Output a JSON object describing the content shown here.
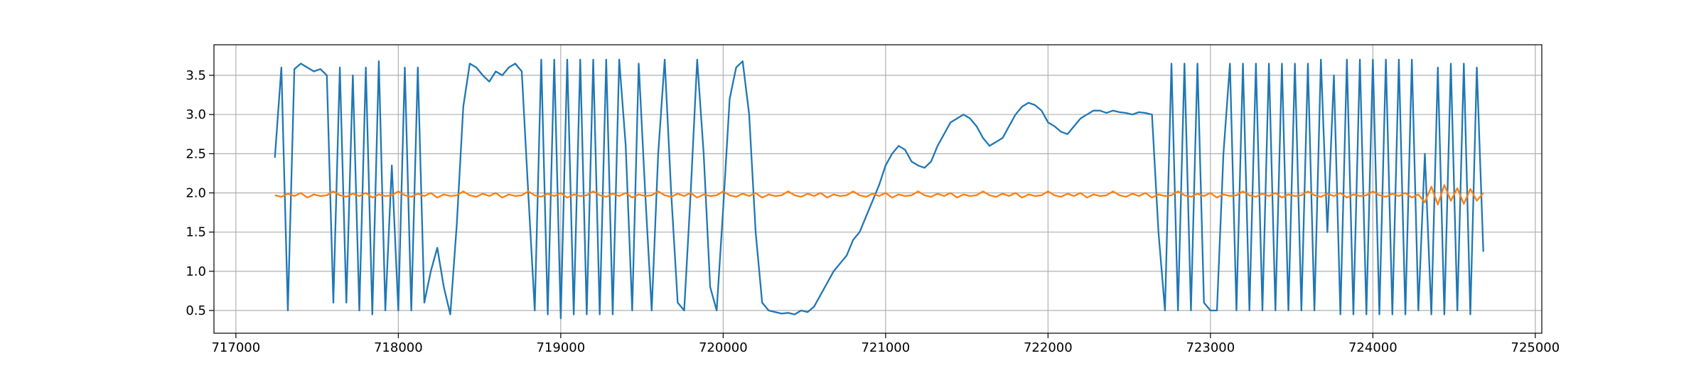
{
  "chart_data": {
    "type": "line",
    "x": [
      717240,
      717280,
      717320,
      717360,
      717400,
      717440,
      717480,
      717520,
      717560,
      717600,
      717640,
      717680,
      717720,
      717760,
      717800,
      717840,
      717880,
      717920,
      717960,
      718000,
      718040,
      718080,
      718120,
      718160,
      718200,
      718240,
      718280,
      718320,
      718360,
      718400,
      718440,
      718480,
      718520,
      718560,
      718600,
      718640,
      718680,
      718720,
      718760,
      718800,
      718840,
      718880,
      718920,
      718960,
      719000,
      719040,
      719080,
      719120,
      719160,
      719200,
      719240,
      719280,
      719320,
      719360,
      719400,
      719440,
      719480,
      719520,
      719560,
      719600,
      719640,
      719680,
      719720,
      719760,
      719800,
      719840,
      719880,
      719920,
      719960,
      720000,
      720040,
      720080,
      720120,
      720160,
      720200,
      720240,
      720280,
      720320,
      720360,
      720400,
      720440,
      720480,
      720520,
      720560,
      720600,
      720640,
      720680,
      720720,
      720760,
      720800,
      720840,
      720880,
      720920,
      720960,
      721000,
      721040,
      721080,
      721120,
      721160,
      721200,
      721240,
      721280,
      721320,
      721360,
      721400,
      721440,
      721480,
      721520,
      721560,
      721600,
      721640,
      721680,
      721720,
      721760,
      721800,
      721840,
      721880,
      721920,
      721960,
      722000,
      722040,
      722080,
      722120,
      722160,
      722200,
      722240,
      722280,
      722320,
      722360,
      722400,
      722440,
      722480,
      722520,
      722560,
      722600,
      722640,
      722680,
      722720,
      722760,
      722800,
      722840,
      722880,
      722920,
      722960,
      723000,
      723040,
      723080,
      723120,
      723160,
      723200,
      723240,
      723280,
      723320,
      723360,
      723400,
      723440,
      723480,
      723520,
      723560,
      723600,
      723640,
      723680,
      723720,
      723760,
      723800,
      723840,
      723880,
      723920,
      723960,
      724000,
      724040,
      724080,
      724120,
      724160,
      724200,
      724240,
      724280,
      724320,
      724360,
      724400,
      724440,
      724480,
      724520,
      724560,
      724600,
      724640,
      724680
    ],
    "series": [
      {
        "color": "#1f77b4",
        "values": [
          2.45,
          3.6,
          0.5,
          3.58,
          3.65,
          3.6,
          3.55,
          3.58,
          3.5,
          0.6,
          3.6,
          0.6,
          3.5,
          0.5,
          3.6,
          0.45,
          3.68,
          0.5,
          2.35,
          0.5,
          3.6,
          0.5,
          3.6,
          0.6,
          1.0,
          1.3,
          0.8,
          0.45,
          1.6,
          3.1,
          3.65,
          3.6,
          3.5,
          3.42,
          3.55,
          3.5,
          3.6,
          3.65,
          3.55,
          2.0,
          0.5,
          3.7,
          0.45,
          3.7,
          0.4,
          3.7,
          0.45,
          3.7,
          0.45,
          3.7,
          0.45,
          3.7,
          0.45,
          3.7,
          2.6,
          0.5,
          3.65,
          2.0,
          0.5,
          2.5,
          3.7,
          2.0,
          0.6,
          0.5,
          2.0,
          3.7,
          2.5,
          0.8,
          0.5,
          1.8,
          3.2,
          3.6,
          3.68,
          3.0,
          1.5,
          0.6,
          0.5,
          0.48,
          0.46,
          0.47,
          0.45,
          0.5,
          0.48,
          0.55,
          0.7,
          0.85,
          1.0,
          1.1,
          1.2,
          1.4,
          1.5,
          1.7,
          1.9,
          2.1,
          2.35,
          2.5,
          2.6,
          2.55,
          2.4,
          2.35,
          2.32,
          2.4,
          2.6,
          2.75,
          2.9,
          2.95,
          3.0,
          2.95,
          2.85,
          2.7,
          2.6,
          2.65,
          2.7,
          2.85,
          3.0,
          3.1,
          3.15,
          3.12,
          3.05,
          2.9,
          2.85,
          2.78,
          2.75,
          2.85,
          2.95,
          3.0,
          3.05,
          3.05,
          3.02,
          3.05,
          3.03,
          3.02,
          3.0,
          3.03,
          3.02,
          3.0,
          1.5,
          0.5,
          3.65,
          0.5,
          3.65,
          0.5,
          3.65,
          0.6,
          0.5,
          0.5,
          2.5,
          3.65,
          0.5,
          3.65,
          0.5,
          3.65,
          0.5,
          3.65,
          0.5,
          3.65,
          0.5,
          3.65,
          0.5,
          3.65,
          0.5,
          3.7,
          1.5,
          3.5,
          0.45,
          3.7,
          0.45,
          3.7,
          0.45,
          3.7,
          0.45,
          3.7,
          0.45,
          3.7,
          0.45,
          3.7,
          0.5,
          2.5,
          0.45,
          3.6,
          0.45,
          3.65,
          0.5,
          3.65,
          0.45,
          3.6,
          1.25
        ]
      },
      {
        "color": "#ff7f0e",
        "values": [
          1.97,
          1.95,
          1.99,
          1.96,
          2.0,
          1.94,
          1.98,
          1.96,
          1.97,
          2.02,
          1.97,
          1.95,
          1.99,
          1.96,
          2.0,
          1.94,
          1.98,
          1.96,
          1.97,
          2.02,
          1.97,
          1.95,
          1.99,
          1.96,
          2.0,
          1.94,
          1.98,
          1.96,
          1.97,
          2.02,
          1.97,
          1.95,
          1.99,
          1.96,
          2.0,
          1.94,
          1.98,
          1.96,
          1.97,
          2.02,
          1.97,
          1.95,
          1.99,
          1.96,
          2.0,
          1.94,
          1.98,
          1.96,
          1.97,
          2.02,
          1.97,
          1.95,
          1.99,
          1.96,
          2.0,
          1.94,
          1.98,
          1.96,
          1.97,
          2.02,
          1.97,
          1.95,
          1.99,
          1.96,
          2.0,
          1.94,
          1.98,
          1.96,
          1.97,
          2.02,
          1.97,
          1.95,
          1.99,
          1.96,
          2.0,
          1.94,
          1.98,
          1.96,
          1.97,
          2.02,
          1.97,
          1.95,
          1.99,
          1.96,
          2.0,
          1.94,
          1.98,
          1.96,
          1.97,
          2.02,
          1.97,
          1.95,
          1.99,
          1.96,
          2.0,
          1.94,
          1.98,
          1.96,
          1.97,
          2.02,
          1.97,
          1.95,
          1.99,
          1.96,
          2.0,
          1.94,
          1.98,
          1.96,
          1.97,
          2.02,
          1.97,
          1.95,
          1.99,
          1.96,
          2.0,
          1.94,
          1.98,
          1.96,
          1.97,
          2.02,
          1.97,
          1.95,
          1.99,
          1.96,
          2.0,
          1.94,
          1.98,
          1.96,
          1.97,
          2.02,
          1.97,
          1.95,
          1.99,
          1.96,
          2.0,
          1.94,
          1.98,
          1.96,
          1.97,
          2.02,
          1.97,
          1.95,
          1.99,
          1.96,
          2.0,
          1.94,
          1.98,
          1.96,
          1.97,
          2.02,
          1.97,
          1.95,
          1.99,
          1.96,
          2.0,
          1.94,
          1.98,
          1.96,
          1.97,
          2.02,
          1.97,
          1.95,
          1.99,
          1.96,
          2.0,
          1.94,
          1.98,
          1.96,
          1.97,
          2.02,
          1.97,
          1.95,
          1.99,
          1.96,
          2.0,
          1.94,
          1.98,
          1.88,
          2.08,
          1.85,
          2.1,
          1.9,
          2.06,
          1.86,
          2.05,
          1.9,
          2.0
        ]
      }
    ],
    "xlim": [
      716865,
      725040
    ],
    "xticks": [
      717000,
      718000,
      719000,
      720000,
      721000,
      722000,
      723000,
      724000,
      725000
    ],
    "ylim": [
      0.21,
      3.89
    ],
    "yticks": [
      0.5,
      {
        "value": 1,
        "label": "1.0"
      },
      1.5,
      {
        "value": 2,
        "label": "2.0"
      },
      2.5,
      {
        "value": 3,
        "label": "3.0"
      },
      3.5
    ],
    "grid": true
  }
}
